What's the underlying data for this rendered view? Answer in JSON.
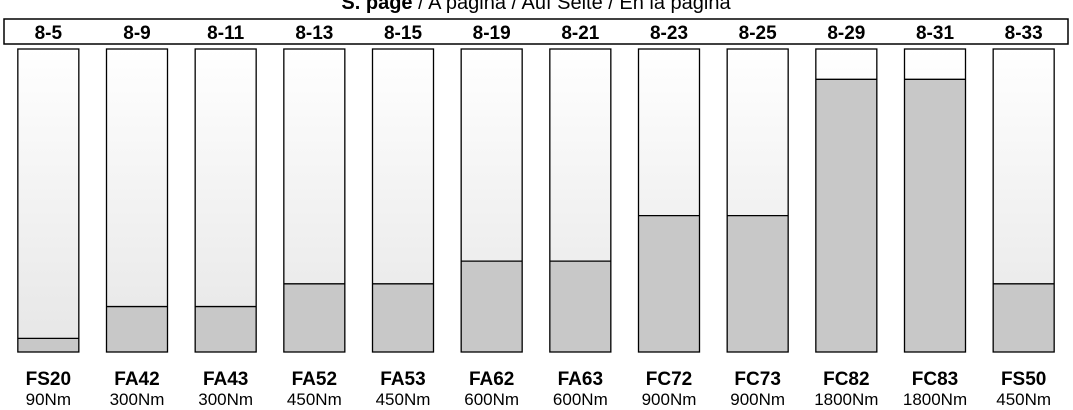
{
  "header": {
    "title_bold": "S. page",
    "title_rest": " / A pagina / Auf Seite / En la pagina"
  },
  "chart_data": {
    "type": "bar",
    "orientation": "vertical",
    "max_value": 2000,
    "colors": {
      "fill": "#c8c8c8",
      "empty_top": "#ffffff",
      "empty_bottom": "#e6e6e6",
      "border": "#000000"
    },
    "items": [
      {
        "page": "8-5",
        "model": "FS20",
        "torque_label": "90Nm",
        "value": 90
      },
      {
        "page": "8-9",
        "model": "FA42",
        "torque_label": "300Nm",
        "value": 300
      },
      {
        "page": "8-11",
        "model": "FA43",
        "torque_label": "300Nm",
        "value": 300
      },
      {
        "page": "8-13",
        "model": "FA52",
        "torque_label": "450Nm",
        "value": 450
      },
      {
        "page": "8-15",
        "model": "FA53",
        "torque_label": "450Nm",
        "value": 450
      },
      {
        "page": "8-19",
        "model": "FA62",
        "torque_label": "600Nm",
        "value": 600
      },
      {
        "page": "8-21",
        "model": "FA63",
        "torque_label": "600Nm",
        "value": 600
      },
      {
        "page": "8-23",
        "model": "FC72",
        "torque_label": "900Nm",
        "value": 900
      },
      {
        "page": "8-25",
        "model": "FC73",
        "torque_label": "900Nm",
        "value": 900
      },
      {
        "page": "8-29",
        "model": "FC82",
        "torque_label": "1800Nm",
        "value": 1800
      },
      {
        "page": "8-31",
        "model": "FC83",
        "torque_label": "1800Nm",
        "value": 1800
      },
      {
        "page": "8-33",
        "model": "FS50",
        "torque_label": "450Nm",
        "value": 450
      }
    ]
  }
}
